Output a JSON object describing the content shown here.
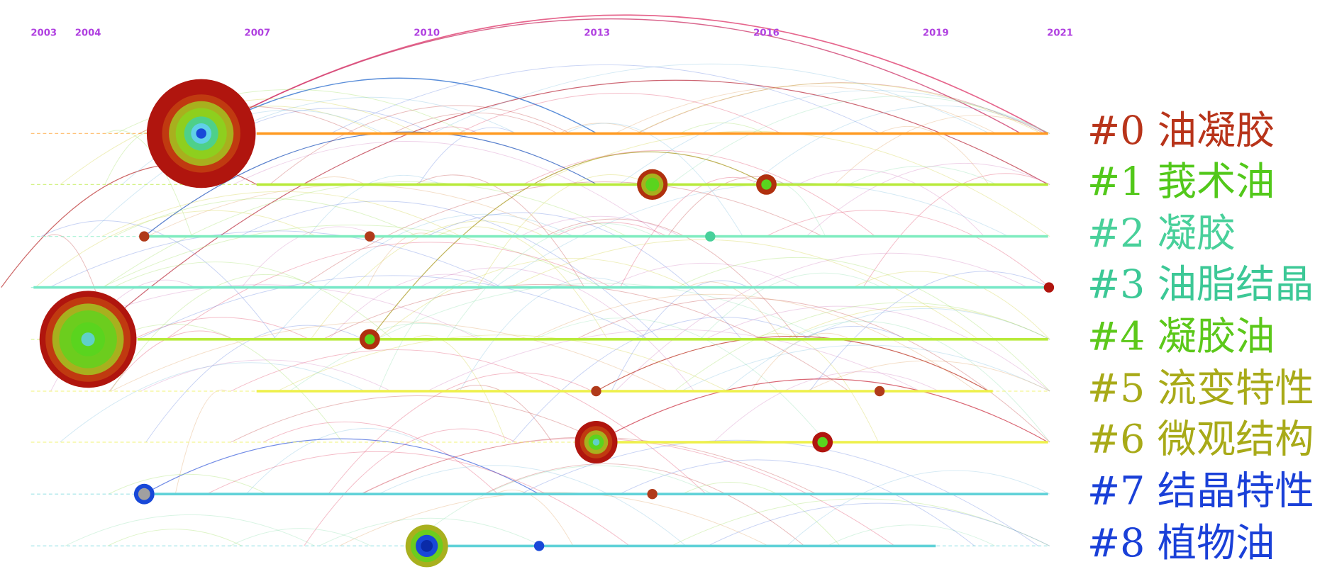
{
  "years": [
    "2003",
    "2004",
    "2007",
    "2010",
    "2013",
    "2016",
    "2019",
    "2021"
  ],
  "clusters": [
    {
      "label": "#0 油凝胶"
    },
    {
      "label": "#1 莪术油"
    },
    {
      "label": "#2 凝胶"
    },
    {
      "label": "#3 油脂结晶"
    },
    {
      "label": "#4 凝胶油"
    },
    {
      "label": "#5 流变特性"
    },
    {
      "label": "#6 微观结构"
    },
    {
      "label": "#7 结晶特性"
    },
    {
      "label": "#8 植物油"
    }
  ]
}
